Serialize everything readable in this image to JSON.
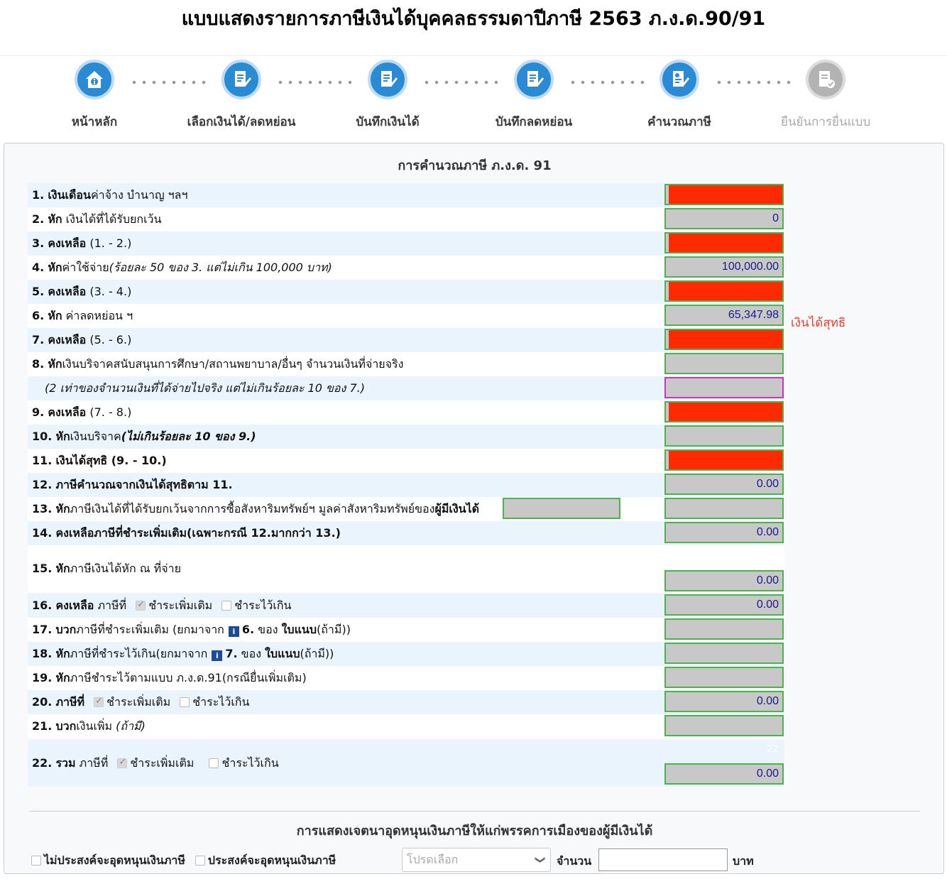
{
  "page_title": "แบบแสดงรายการภาษีเงินได้บุคคลธรรมดาปีภาษี 2563 ภ.ง.ด.90/91",
  "stepper": {
    "steps": [
      {
        "label": "หน้าหลัก",
        "icon": "home-info-icon",
        "state": "done"
      },
      {
        "label": "เลือกเงินได้/ลดหย่อน",
        "icon": "edit-document-icon",
        "state": "done"
      },
      {
        "label": "บันทึกเงินได้",
        "icon": "edit-document-icon",
        "state": "done"
      },
      {
        "label": "บันทึกลดหย่อน",
        "icon": "edit-document-icon",
        "state": "done"
      },
      {
        "label": "คำนวณภาษี",
        "icon": "calculate-document-icon",
        "state": "current"
      },
      {
        "label": "ยืนยันการยื่นแบบ",
        "icon": "confirm-document-icon",
        "state": "disabled"
      }
    ]
  },
  "calc": {
    "title": "การคำนวณภาษี ภ.ง.ด. 91",
    "rows": {
      "r1": {
        "num": "1.",
        "bold": "เงินเดือน",
        "text": "ค่าจ้าง บำนาญ ฯลฯ",
        "value": ""
      },
      "r2": {
        "num": "2.",
        "bold": "หัก",
        "text": " เงินได้ที่ได้รับยกเว้น",
        "value": "0"
      },
      "r3": {
        "num": "3.",
        "bold": "คงเหลือ",
        "text": " (1. - 2.)",
        "value": ""
      },
      "r4": {
        "num": "4.",
        "bold": "หัก",
        "text": "ค่าใช้จ่าย",
        "italic": "(ร้อยละ 50 ของ 3. แต่ไม่เกิน 100,000 บาท)",
        "value": "100,000.00"
      },
      "r5": {
        "num": "5.",
        "bold": "คงเหลือ",
        "text": " (3. - 4.)",
        "value": ""
      },
      "r6": {
        "num": "6.",
        "bold": "หัก",
        "text": " ค่าลดหย่อน ฯ",
        "value": "65,347.98"
      },
      "r7": {
        "num": "7.",
        "bold": "คงเหลือ",
        "text": " (5. - 6.)",
        "value": ""
      },
      "r8": {
        "num": "8.",
        "bold": "หัก",
        "text": "เงินบริจาคสนับสนุนการศึกษา/สถานพยาบาล/อื่นๆ จำนวนเงินที่จ่ายจริง",
        "value": ""
      },
      "r8b": {
        "italic": "(2 เท่าของจำนวนเงินที่ได้จ่ายไปจริง แต่ไม่เกินร้อยละ 10 ของ 7.)",
        "value": ""
      },
      "r9": {
        "num": "9.",
        "bold": "คงเหลือ",
        "text": " (7. - 8.)",
        "value": ""
      },
      "r10": {
        "num": "10.",
        "bold": "หัก",
        "text": "เงินบริจาค",
        "bold_italic": "(ไม่เกินร้อยละ 10 ของ 9.)",
        "value": ""
      },
      "r11": {
        "num": "11.",
        "bold": "เงินได้สุทธิ (9. - 10.)",
        "value": "",
        "note": "เงินได้สุทธิ"
      },
      "r12": {
        "num": "12.",
        "bold": "ภาษีคำนวณจากเงินได้สุทธิตาม 11.",
        "value": "0.00"
      },
      "r13": {
        "num": "13.",
        "bold": "หัก",
        "text": "ภาษีเงินได้ที่ได้รับยกเว้นจากการซื้อสังหาริมทรัพย์ฯ มูลค่าสังหาริมทรัพย์ของ",
        "bold2": "ผู้มีเงินได้",
        "value": "",
        "property_value": ""
      },
      "r14": {
        "num": "14.",
        "bold": "คงเหลือภาษีที่ชำระเพิ่มเติม(เฉพาะกรณี 12.มากกว่า 13.)",
        "value": "0.00"
      },
      "r15": {
        "num": "15.",
        "bold": "หัก",
        "text": "ภาษีเงินได้หัก ณ ที่จ่าย",
        "value": "0.00"
      },
      "r16": {
        "num": "16.",
        "bold": "คงเหลือ",
        "text": " ภาษีที่",
        "opt1": "ชำระเพิ่มเติม",
        "opt2": "ชำระไว้เกิน",
        "value": "0.00"
      },
      "r17": {
        "num": "17.",
        "bold": "บวก",
        "text": "ภาษีที่ชำระเพิ่มเติม (ยกมาจาก",
        "ref": "6.",
        "text2": " ของ ",
        "bold2": "ใบแนบ",
        "text3": "(ถ้ามี))",
        "value": ""
      },
      "r18": {
        "num": "18.",
        "bold": "หัก",
        "text": "ภาษีที่ชำระไว้เกิน(ยกมาจาก",
        "ref": "7.",
        "text2": " ของ ",
        "bold2": "ใบแนบ",
        "text3": "(ถ้ามี))",
        "value": ""
      },
      "r19": {
        "num": "19.",
        "bold": "หัก",
        "text": "ภาษีชำระไว้ตามแบบ ภ.ง.ด.91(กรณียื่นเพิ่มเติม)",
        "value": ""
      },
      "r20": {
        "num": "20.",
        "bold": "ภาษีที่",
        "opt1": "ชำระเพิ่มเติม",
        "opt2": "ชำระไว้เกิน",
        "value": "0.00"
      },
      "r21": {
        "num": "21.",
        "bold": "บวก",
        "text": "เงินเพิ่ม ",
        "italic": "(ถ้ามี)",
        "value": ""
      },
      "r22": {
        "num": "22.",
        "bold": "รวม",
        "text": " ภาษีที่",
        "opt1": "ชำระเพิ่มเติม",
        "opt2": "ชำระไว้เกิน",
        "value": "0.00",
        "faint": "22"
      }
    }
  },
  "donation": {
    "title": "การแสดงเจตนาอุดหนุนเงินภาษีให้แก่พรรคการเมืองของผู้มีเงินได้",
    "opt_no": "ไม่ประสงค์จะอุดหนุนเงินภาษี",
    "opt_yes": "ประสงค์จะอุดหนุนเงินภาษี",
    "select_placeholder": "โปรดเลือก",
    "amount_label": "จำนวน",
    "amount_value": "",
    "unit": "บาท"
  },
  "colors": {
    "accent": "#2a8ad4",
    "field_border": "#4ab548",
    "field_fill": "#c8c8c8",
    "redacted": "#ff2a00",
    "note": "#e8402a",
    "row_stripe": "#eaf4fd"
  }
}
